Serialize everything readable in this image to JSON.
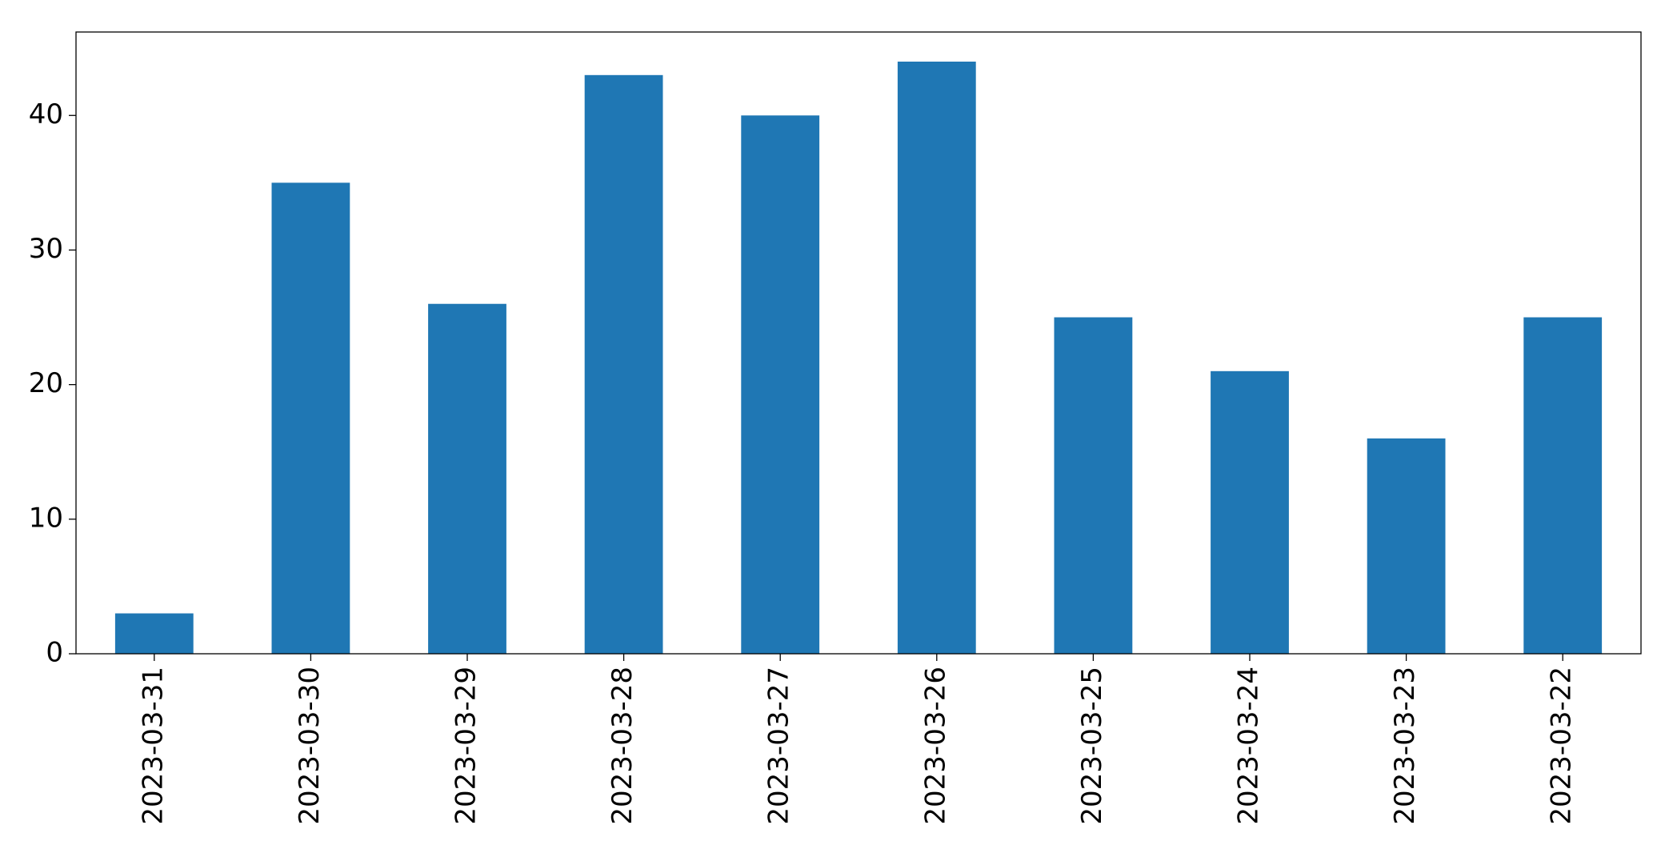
{
  "chart_data": {
    "type": "bar",
    "categories": [
      "2023-03-31",
      "2023-03-30",
      "2023-03-29",
      "2023-03-28",
      "2023-03-27",
      "2023-03-26",
      "2023-03-25",
      "2023-03-24",
      "2023-03-23",
      "2023-03-22"
    ],
    "values": [
      3,
      35,
      26,
      43,
      40,
      44,
      25,
      21,
      16,
      25
    ],
    "color": "#1f77b4",
    "ylim": [
      0,
      46.2
    ],
    "yticks": [
      0,
      10,
      20,
      30,
      40
    ],
    "grid": false
  }
}
